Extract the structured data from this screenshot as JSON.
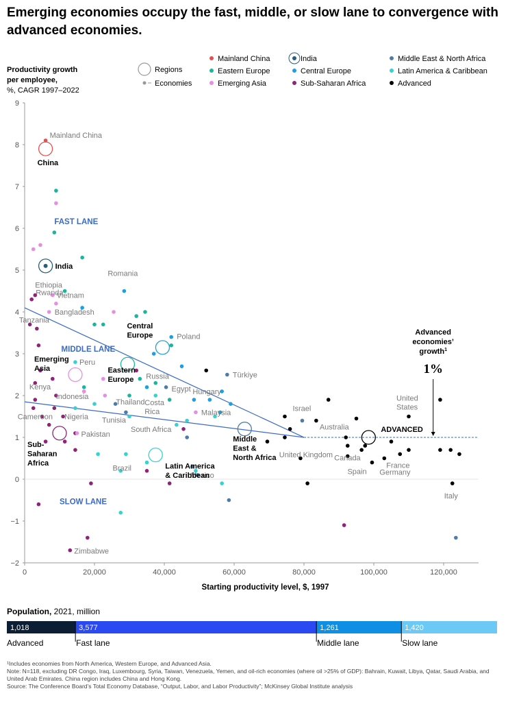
{
  "title": "Emerging economies occupy the fast, middle, or slow lane to convergence with advanced economies.",
  "colors": {
    "mainland_china": "#e0524f",
    "eastern_europe": "#1bb59e",
    "emerging_asia": "#e58fe0",
    "india": "#2a5d7a",
    "central_europe": "#1d9fe0",
    "sub_saharan_africa": "#8e2378",
    "mena": "#4f7ca6",
    "latam": "#36d2d2",
    "advanced": "#000000",
    "trend": "#3a6bc8",
    "lane_label": "#3a6bc8",
    "grey_label": "#7a7a7a",
    "grid": "#d8d8d8"
  },
  "chart_data": {
    "type": "scatter",
    "ylabel": "Productivity growth per employee, %, CAGR 1997–2022",
    "ylabel_lines": [
      "Productivity growth",
      "per employee,",
      "%, CAGR 1997–2022"
    ],
    "xlabel": "Starting productivity level, $, 1997",
    "xlim": [
      0,
      130000
    ],
    "ylim": [
      -2,
      9
    ],
    "x_ticks": [
      0,
      20000,
      40000,
      60000,
      80000,
      100000,
      120000
    ],
    "x_tick_labels": [
      "0",
      "20,000",
      "40,000",
      "60,000",
      "80,000",
      "100,000",
      "120,000"
    ],
    "y_ticks": [
      -2,
      -1,
      0,
      1,
      2,
      3,
      4,
      5,
      6,
      7,
      8,
      9
    ],
    "y_tick_labels": [
      "−2",
      "−1",
      "0",
      "1",
      "2",
      "3",
      "4",
      "5",
      "6",
      "7",
      "8",
      "9"
    ],
    "grid": "horizontal dashed reference line at advanced growth (1%)",
    "legend": {
      "shapes": [
        {
          "label": "Regions",
          "shape": "circle-large"
        },
        {
          "label": "Economies",
          "shape": "dot-small"
        }
      ],
      "groups": [
        {
          "label": "Mainland China",
          "color_key": "mainland_china",
          "ring": false
        },
        {
          "label": "Eastern Europe",
          "color_key": "eastern_europe",
          "ring": false
        },
        {
          "label": "Emerging Asia",
          "color_key": "emerging_asia",
          "ring": false
        },
        {
          "label": "India",
          "color_key": "india",
          "ring": true
        },
        {
          "label": "Central Europe",
          "color_key": "central_europe",
          "ring": false
        },
        {
          "label": "Sub-Saharan Africa",
          "color_key": "sub_saharan_africa",
          "ring": false
        },
        {
          "label": "Middle East & North Africa",
          "color_key": "mena",
          "ring": false
        },
        {
          "label": "Latin America & Caribbean",
          "color_key": "latam",
          "ring": false
        },
        {
          "label": "Advanced",
          "color_key": "advanced",
          "ring": false
        }
      ]
    },
    "lanes": [
      {
        "label": "FAST LANE",
        "x": 8500,
        "y": 6.1
      },
      {
        "label": "MIDDLE LANE",
        "x": 10500,
        "y": 3.05
      },
      {
        "label": "SLOW LANE",
        "x": 10000,
        "y": -0.6
      }
    ],
    "convergence_point": {
      "x": 80000,
      "y": 1.0
    },
    "trend_lines": [
      {
        "from": {
          "x": 0,
          "y": 4.1
        },
        "to": {
          "x": 80000,
          "y": 1.0
        }
      },
      {
        "from": {
          "x": 0,
          "y": 1.85
        },
        "to": {
          "x": 80000,
          "y": 1.0
        }
      }
    ],
    "reference_line": {
      "y": 1.0,
      "x_from": 80000,
      "x_to": 130000
    },
    "advanced_annotation": {
      "lines": [
        "Advanced",
        "economies’",
        "growth"
      ],
      "superscript": "1",
      "value": "1%",
      "x": 117000
    },
    "regions": [
      {
        "label": "China",
        "group": "mainland_china",
        "x": 6000,
        "y": 7.9
      },
      {
        "label": "India",
        "group": "india",
        "x": 6000,
        "y": 5.1
      },
      {
        "label": "Central Europe",
        "group": "central_europe",
        "x": 39500,
        "y": 3.15
      },
      {
        "label": "Emerging Asia",
        "group": "emerging_asia",
        "x": 14500,
        "y": 2.5
      },
      {
        "label": "Eastern Europe",
        "group": "eastern_europe",
        "x": 29500,
        "y": 2.75
      },
      {
        "label": "Middle East & North Africa",
        "group": "mena",
        "x": 63000,
        "y": 1.2
      },
      {
        "label": "Latin America & Caribbean",
        "group": "latam",
        "x": 37500,
        "y": 0.58
      },
      {
        "label": "Sub-Saharan Africa",
        "group": "sub_saharan_africa",
        "x": 10000,
        "y": 1.1
      },
      {
        "label": "ADVANCED",
        "group": "advanced",
        "x": 98500,
        "y": 1.0
      }
    ],
    "economies": [
      {
        "name": "Mainland China",
        "group": "mainland_china",
        "x": 6000,
        "y": 8.1
      },
      {
        "name": "Ethiopia",
        "group": "sub_saharan_africa",
        "x": 3000,
        "y": 4.4
      },
      {
        "name": "Rwanda",
        "group": "sub_saharan_africa",
        "x": 2000,
        "y": 4.3
      },
      {
        "name": "Vietnam",
        "group": "emerging_asia",
        "x": 8000,
        "y": 4.4
      },
      {
        "name": "Bangladesh",
        "group": "emerging_asia",
        "x": 7000,
        "y": 4.0
      },
      {
        "name": "Romania",
        "group": "central_europe",
        "x": 28500,
        "y": 4.5
      },
      {
        "name": "Tanzania",
        "group": "sub_saharan_africa",
        "x": 3500,
        "y": 3.6
      },
      {
        "name": "Poland",
        "group": "central_europe",
        "x": 42000,
        "y": 3.4
      },
      {
        "name": "Peru",
        "group": "latam",
        "x": 14500,
        "y": 2.8
      },
      {
        "name": "Türkiye",
        "group": "mena",
        "x": 58000,
        "y": 2.5
      },
      {
        "name": "Russia",
        "group": "eastern_europe",
        "x": 37500,
        "y": 2.3
      },
      {
        "name": "Egypt",
        "group": "mena",
        "x": 40500,
        "y": 2.2
      },
      {
        "name": "Kenya",
        "group": "sub_saharan_africa",
        "x": 9000,
        "y": 2.0
      },
      {
        "name": "Indonesia",
        "group": "emerging_asia",
        "x": 17000,
        "y": 2.1
      },
      {
        "name": "Thailand",
        "group": "emerging_asia",
        "x": 23000,
        "y": 2.0
      },
      {
        "name": "Costa Rica",
        "group": "latam",
        "x": 37500,
        "y": 2.0
      },
      {
        "name": "Hungary",
        "group": "central_europe",
        "x": 48500,
        "y": 1.9
      },
      {
        "name": "Malaysia",
        "group": "emerging_asia",
        "x": 49000,
        "y": 1.6
      },
      {
        "name": "Tunisia",
        "group": "mena",
        "x": 29000,
        "y": 1.6
      },
      {
        "name": "Nigeria",
        "group": "sub_saharan_africa",
        "x": 11000,
        "y": 1.5
      },
      {
        "name": "Cameroon",
        "group": "sub_saharan_africa",
        "x": 7000,
        "y": 1.3
      },
      {
        "name": "Pakistan",
        "group": "emerging_asia",
        "x": 15000,
        "y": 1.1
      },
      {
        "name": "South Africa",
        "group": "sub_saharan_africa",
        "x": 45500,
        "y": 1.2
      },
      {
        "name": "Israel",
        "group": "mena",
        "x": 79500,
        "y": 1.4
      },
      {
        "name": "Australia",
        "group": "advanced",
        "x": 83500,
        "y": 1.4
      },
      {
        "name": "United States",
        "group": "advanced",
        "x": 110000,
        "y": 1.5
      },
      {
        "name": "United Kingdom",
        "group": "advanced",
        "x": 92500,
        "y": 0.8
      },
      {
        "name": "Canada",
        "group": "advanced",
        "x": 96500,
        "y": 0.7
      },
      {
        "name": "Spain",
        "group": "advanced",
        "x": 99500,
        "y": 0.4
      },
      {
        "name": "Germany",
        "group": "advanced",
        "x": 103000,
        "y": 0.5
      },
      {
        "name": "France",
        "group": "advanced",
        "x": 107500,
        "y": 0.6
      },
      {
        "name": "Italy",
        "group": "advanced",
        "x": 122500,
        "y": -0.1
      },
      {
        "name": "Brazil",
        "group": "latam",
        "x": 35000,
        "y": 0.4
      },
      {
        "name": "Mexico",
        "group": "latam",
        "x": 49000,
        "y": 0.2
      },
      {
        "name": "Zimbabwe",
        "group": "sub_saharan_africa",
        "x": 13000,
        "y": -1.7
      }
    ],
    "unlabeled_points": [
      {
        "group": "eastern_europe",
        "x": 9000,
        "y": 6.9
      },
      {
        "group": "emerging_asia",
        "x": 9000,
        "y": 6.6
      },
      {
        "group": "eastern_europe",
        "x": 8500,
        "y": 5.9
      },
      {
        "group": "emerging_asia",
        "x": 2500,
        "y": 5.5
      },
      {
        "group": "emerging_asia",
        "x": 4500,
        "y": 5.6
      },
      {
        "group": "eastern_europe",
        "x": 16500,
        "y": 5.3
      },
      {
        "group": "emerging_asia",
        "x": 2000,
        "y": 4.3
      },
      {
        "group": "eastern_europe",
        "x": 11500,
        "y": 4.5
      },
      {
        "group": "emerging_asia",
        "x": 9000,
        "y": 4.2
      },
      {
        "group": "central_europe",
        "x": 16500,
        "y": 4.1
      },
      {
        "group": "emerging_asia",
        "x": 25500,
        "y": 4.0
      },
      {
        "group": "eastern_europe",
        "x": 34500,
        "y": 4.0
      },
      {
        "group": "eastern_europe",
        "x": 32000,
        "y": 3.9
      },
      {
        "group": "sub_saharan_africa",
        "x": 1500,
        "y": 3.7
      },
      {
        "group": "eastern_europe",
        "x": 20000,
        "y": 3.7
      },
      {
        "group": "eastern_europe",
        "x": 22500,
        "y": 3.7
      },
      {
        "group": "sub_saharan_africa",
        "x": 4000,
        "y": 3.2
      },
      {
        "group": "eastern_europe",
        "x": 42000,
        "y": 3.2
      },
      {
        "group": "central_europe",
        "x": 37000,
        "y": 3.0
      },
      {
        "group": "sub_saharan_africa",
        "x": 4500,
        "y": 2.6
      },
      {
        "group": "sub_saharan_africa",
        "x": 32000,
        "y": 2.6
      },
      {
        "group": "advanced",
        "x": 52000,
        "y": 2.6
      },
      {
        "group": "central_europe",
        "x": 45000,
        "y": 2.7
      },
      {
        "group": "emerging_asia",
        "x": 22500,
        "y": 2.4
      },
      {
        "group": "eastern_europe",
        "x": 33000,
        "y": 2.4
      },
      {
        "group": "sub_saharan_africa",
        "x": 8000,
        "y": 2.4
      },
      {
        "group": "sub_saharan_africa",
        "x": 3000,
        "y": 2.3
      },
      {
        "group": "central_europe",
        "x": 35000,
        "y": 2.2
      },
      {
        "group": "eastern_europe",
        "x": 17000,
        "y": 2.2
      },
      {
        "group": "central_europe",
        "x": 56500,
        "y": 2.1
      },
      {
        "group": "eastern_europe",
        "x": 30000,
        "y": 2.0
      },
      {
        "group": "sub_saharan_africa",
        "x": 3000,
        "y": 1.9
      },
      {
        "group": "eastern_europe",
        "x": 41500,
        "y": 1.9
      },
      {
        "group": "central_europe",
        "x": 53000,
        "y": 1.9
      },
      {
        "group": "latam",
        "x": 20000,
        "y": 1.8
      },
      {
        "group": "mena",
        "x": 26000,
        "y": 1.8
      },
      {
        "group": "central_europe",
        "x": 59000,
        "y": 1.8
      },
      {
        "group": "sub_saharan_africa",
        "x": 2500,
        "y": 1.7
      },
      {
        "group": "sub_saharan_africa",
        "x": 8500,
        "y": 1.7
      },
      {
        "group": "latam",
        "x": 14500,
        "y": 1.7
      },
      {
        "group": "central_europe",
        "x": 56000,
        "y": 1.6
      },
      {
        "group": "sub_saharan_africa",
        "x": 5000,
        "y": 1.5
      },
      {
        "group": "latam",
        "x": 30000,
        "y": 1.5
      },
      {
        "group": "latam",
        "x": 43500,
        "y": 1.3
      },
      {
        "group": "latam",
        "x": 46500,
        "y": 1.4
      },
      {
        "group": "latam",
        "x": 54500,
        "y": 1.5
      },
      {
        "group": "sub_saharan_africa",
        "x": 6000,
        "y": 0.9
      },
      {
        "group": "sub_saharan_africa",
        "x": 11500,
        "y": 0.9
      },
      {
        "group": "sub_saharan_africa",
        "x": 14500,
        "y": 1.1
      },
      {
        "group": "sub_saharan_africa",
        "x": 14500,
        "y": 0.7
      },
      {
        "group": "mena",
        "x": 46500,
        "y": 1.0
      },
      {
        "group": "advanced",
        "x": 69500,
        "y": 0.9
      },
      {
        "group": "latam",
        "x": 21000,
        "y": 0.6
      },
      {
        "group": "latam",
        "x": 29000,
        "y": 0.6
      },
      {
        "group": "latam",
        "x": 27500,
        "y": 0.2
      },
      {
        "group": "sub_saharan_africa",
        "x": 35000,
        "y": 0.2
      },
      {
        "group": "mena",
        "x": 48000,
        "y": 0.3
      },
      {
        "group": "mena",
        "x": 49500,
        "y": 0.1
      },
      {
        "group": "sub_saharan_africa",
        "x": 19000,
        "y": -0.1
      },
      {
        "group": "sub_saharan_africa",
        "x": 41500,
        "y": -0.1
      },
      {
        "group": "latam",
        "x": 56500,
        "y": -0.1
      },
      {
        "group": "mena",
        "x": 58500,
        "y": -0.5
      },
      {
        "group": "latam",
        "x": 27500,
        "y": -0.8
      },
      {
        "group": "sub_saharan_africa",
        "x": 4000,
        "y": -0.6
      },
      {
        "group": "sub_saharan_africa",
        "x": 18000,
        "y": -1.4
      },
      {
        "group": "sub_saharan_africa",
        "x": 91500,
        "y": -1.1
      },
      {
        "group": "mena",
        "x": 123500,
        "y": -1.4
      },
      {
        "group": "advanced",
        "x": 74500,
        "y": 1.5
      },
      {
        "group": "advanced",
        "x": 76000,
        "y": 1.2
      },
      {
        "group": "advanced",
        "x": 74500,
        "y": 1.0
      },
      {
        "group": "advanced",
        "x": 79000,
        "y": 0.5
      },
      {
        "group": "advanced",
        "x": 81000,
        "y": -0.1
      },
      {
        "group": "advanced",
        "x": 87000,
        "y": 1.9
      },
      {
        "group": "advanced",
        "x": 95000,
        "y": 1.45
      },
      {
        "group": "advanced",
        "x": 92000,
        "y": 1.0
      },
      {
        "group": "advanced",
        "x": 92500,
        "y": 0.55
      },
      {
        "group": "advanced",
        "x": 97500,
        "y": 0.8
      },
      {
        "group": "advanced",
        "x": 105000,
        "y": 0.9
      },
      {
        "group": "advanced",
        "x": 110000,
        "y": 0.7
      },
      {
        "group": "advanced",
        "x": 119000,
        "y": 1.9
      },
      {
        "group": "advanced",
        "x": 119000,
        "y": 0.7
      },
      {
        "group": "advanced",
        "x": 122000,
        "y": 0.7
      },
      {
        "group": "advanced",
        "x": 124500,
        "y": 0.6
      }
    ]
  },
  "population": {
    "title_bold": "Population,",
    "title_rest": " 2021, million",
    "segments": [
      {
        "value": 1018,
        "label": "1,018",
        "name": "Advanced",
        "color": "#0b1e33"
      },
      {
        "value": 3577,
        "label": "3,577",
        "name": "Fast lane",
        "color": "#2a49f0"
      },
      {
        "value": 1261,
        "label": "1,261",
        "name": "Middle lane",
        "color": "#0e8fe3"
      },
      {
        "value": 1420,
        "label": "1,420",
        "name": "Slow lane",
        "color": "#6cc8f5"
      }
    ]
  },
  "footnotes": [
    "¹Includes economies from North America, Western Europe, and Advanced Asia.",
    "Note: N=118, excluding DR Congo, Iraq, Luxembourg, Syria, Taiwan, Venezuela, Yemen, and oil-rich economies (where oil >25% of GDP): Bahrain, Kuwait, Libya, Qatar, Saudi Arabia, and United Arab Emirates. China region includes China and Hong Kong.",
    "Source: The Conference Board’s Total Economy Database, “Output, Labor, and Labor Productivity”; McKinsey Global Institute analysis"
  ]
}
